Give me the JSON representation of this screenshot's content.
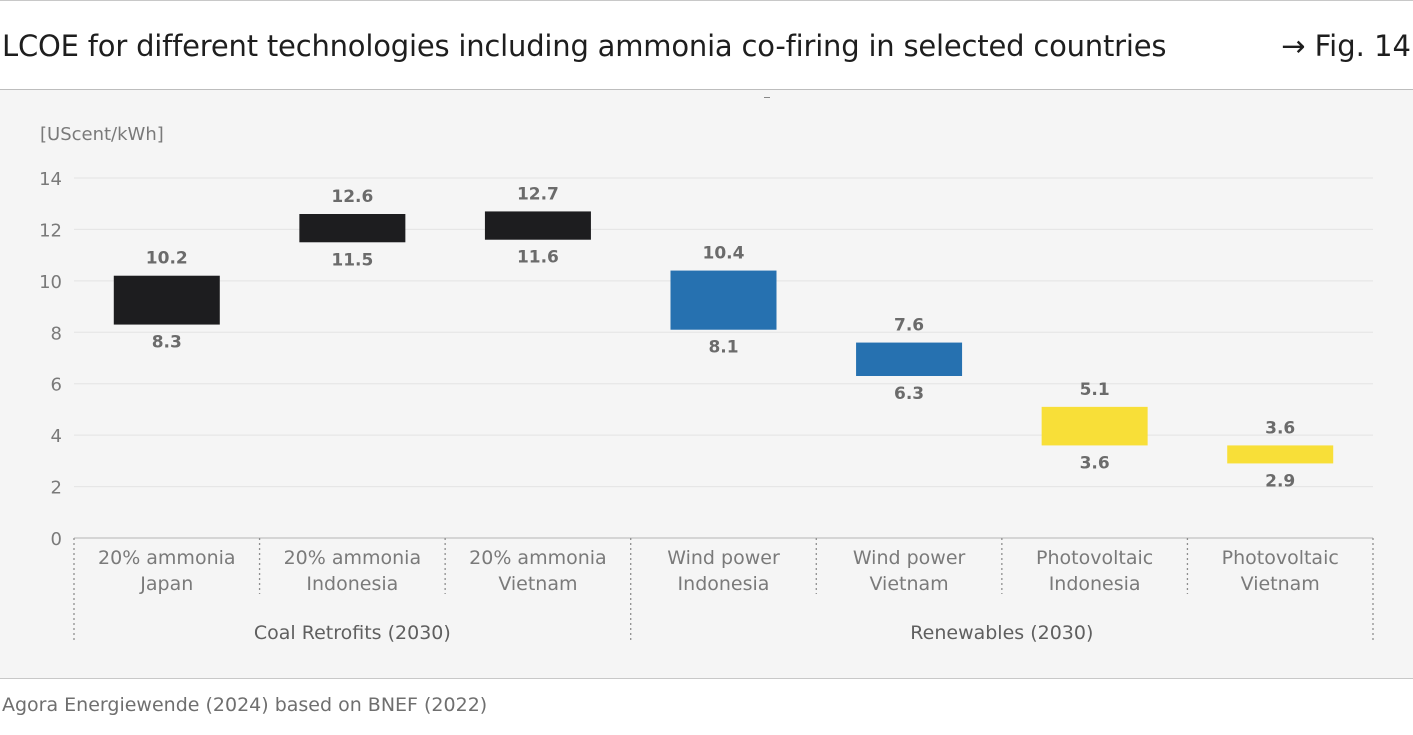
{
  "header": {
    "title": "LCOE for different technologies including ammonia co-firing in selected countries",
    "figure_ref": "→ Fig. 14"
  },
  "footer": {
    "source": "Agora Energiewende (2024) based on BNEF (2022)"
  },
  "colors": {
    "coal": "#1d1d1f",
    "wind": "#2671b0",
    "pv": "#f8df38",
    "grid": "#e3e3e3",
    "value_label": "#6b6b6b",
    "axis_text": "#7a7a7a"
  },
  "chart_data": {
    "type": "floating-bar",
    "unit_label": "[UScent/kWh]",
    "ylim": [
      0,
      14
    ],
    "yticks": [
      0,
      2,
      4,
      6,
      8,
      10,
      12,
      14
    ],
    "grid": true,
    "categories": [
      {
        "line1": "20% ammonia",
        "line2": "Japan",
        "group": "Coal Retrofits (2030)",
        "low": 8.3,
        "high": 10.2,
        "low_label": "8.3",
        "high_label": "10.2",
        "kind": "coal"
      },
      {
        "line1": "20% ammonia",
        "line2": "Indonesia",
        "group": "Coal Retrofits (2030)",
        "low": 11.5,
        "high": 12.6,
        "low_label": "11.5",
        "high_label": "12.6",
        "kind": "coal"
      },
      {
        "line1": "20% ammonia",
        "line2": "Vietnam",
        "group": "Coal Retrofits (2030)",
        "low": 11.6,
        "high": 12.7,
        "low_label": "11.6",
        "high_label": "12.7",
        "kind": "coal"
      },
      {
        "line1": "Wind power",
        "line2": "Indonesia",
        "group": "Renewables (2030)",
        "low": 8.1,
        "high": 10.4,
        "low_label": "8.1",
        "high_label": "10.4",
        "kind": "wind"
      },
      {
        "line1": "Wind power",
        "line2": "Vietnam",
        "group": "Renewables (2030)",
        "low": 6.3,
        "high": 7.6,
        "low_label": "6.3",
        "high_label": "7.6",
        "kind": "wind"
      },
      {
        "line1": "Photovoltaic",
        "line2": "Indonesia",
        "group": "Renewables (2030)",
        "low": 3.6,
        "high": 5.1,
        "low_label": "3.6",
        "high_label": "5.1",
        "kind": "pv"
      },
      {
        "line1": "Photovoltaic",
        "line2": "Vietnam",
        "group": "Renewables (2030)",
        "low": 2.9,
        "high": 3.6,
        "low_label": "2.9",
        "high_label": "3.6",
        "kind": "pv"
      }
    ],
    "groups": [
      "Coal Retrofits (2030)",
      "Renewables (2030)"
    ]
  }
}
